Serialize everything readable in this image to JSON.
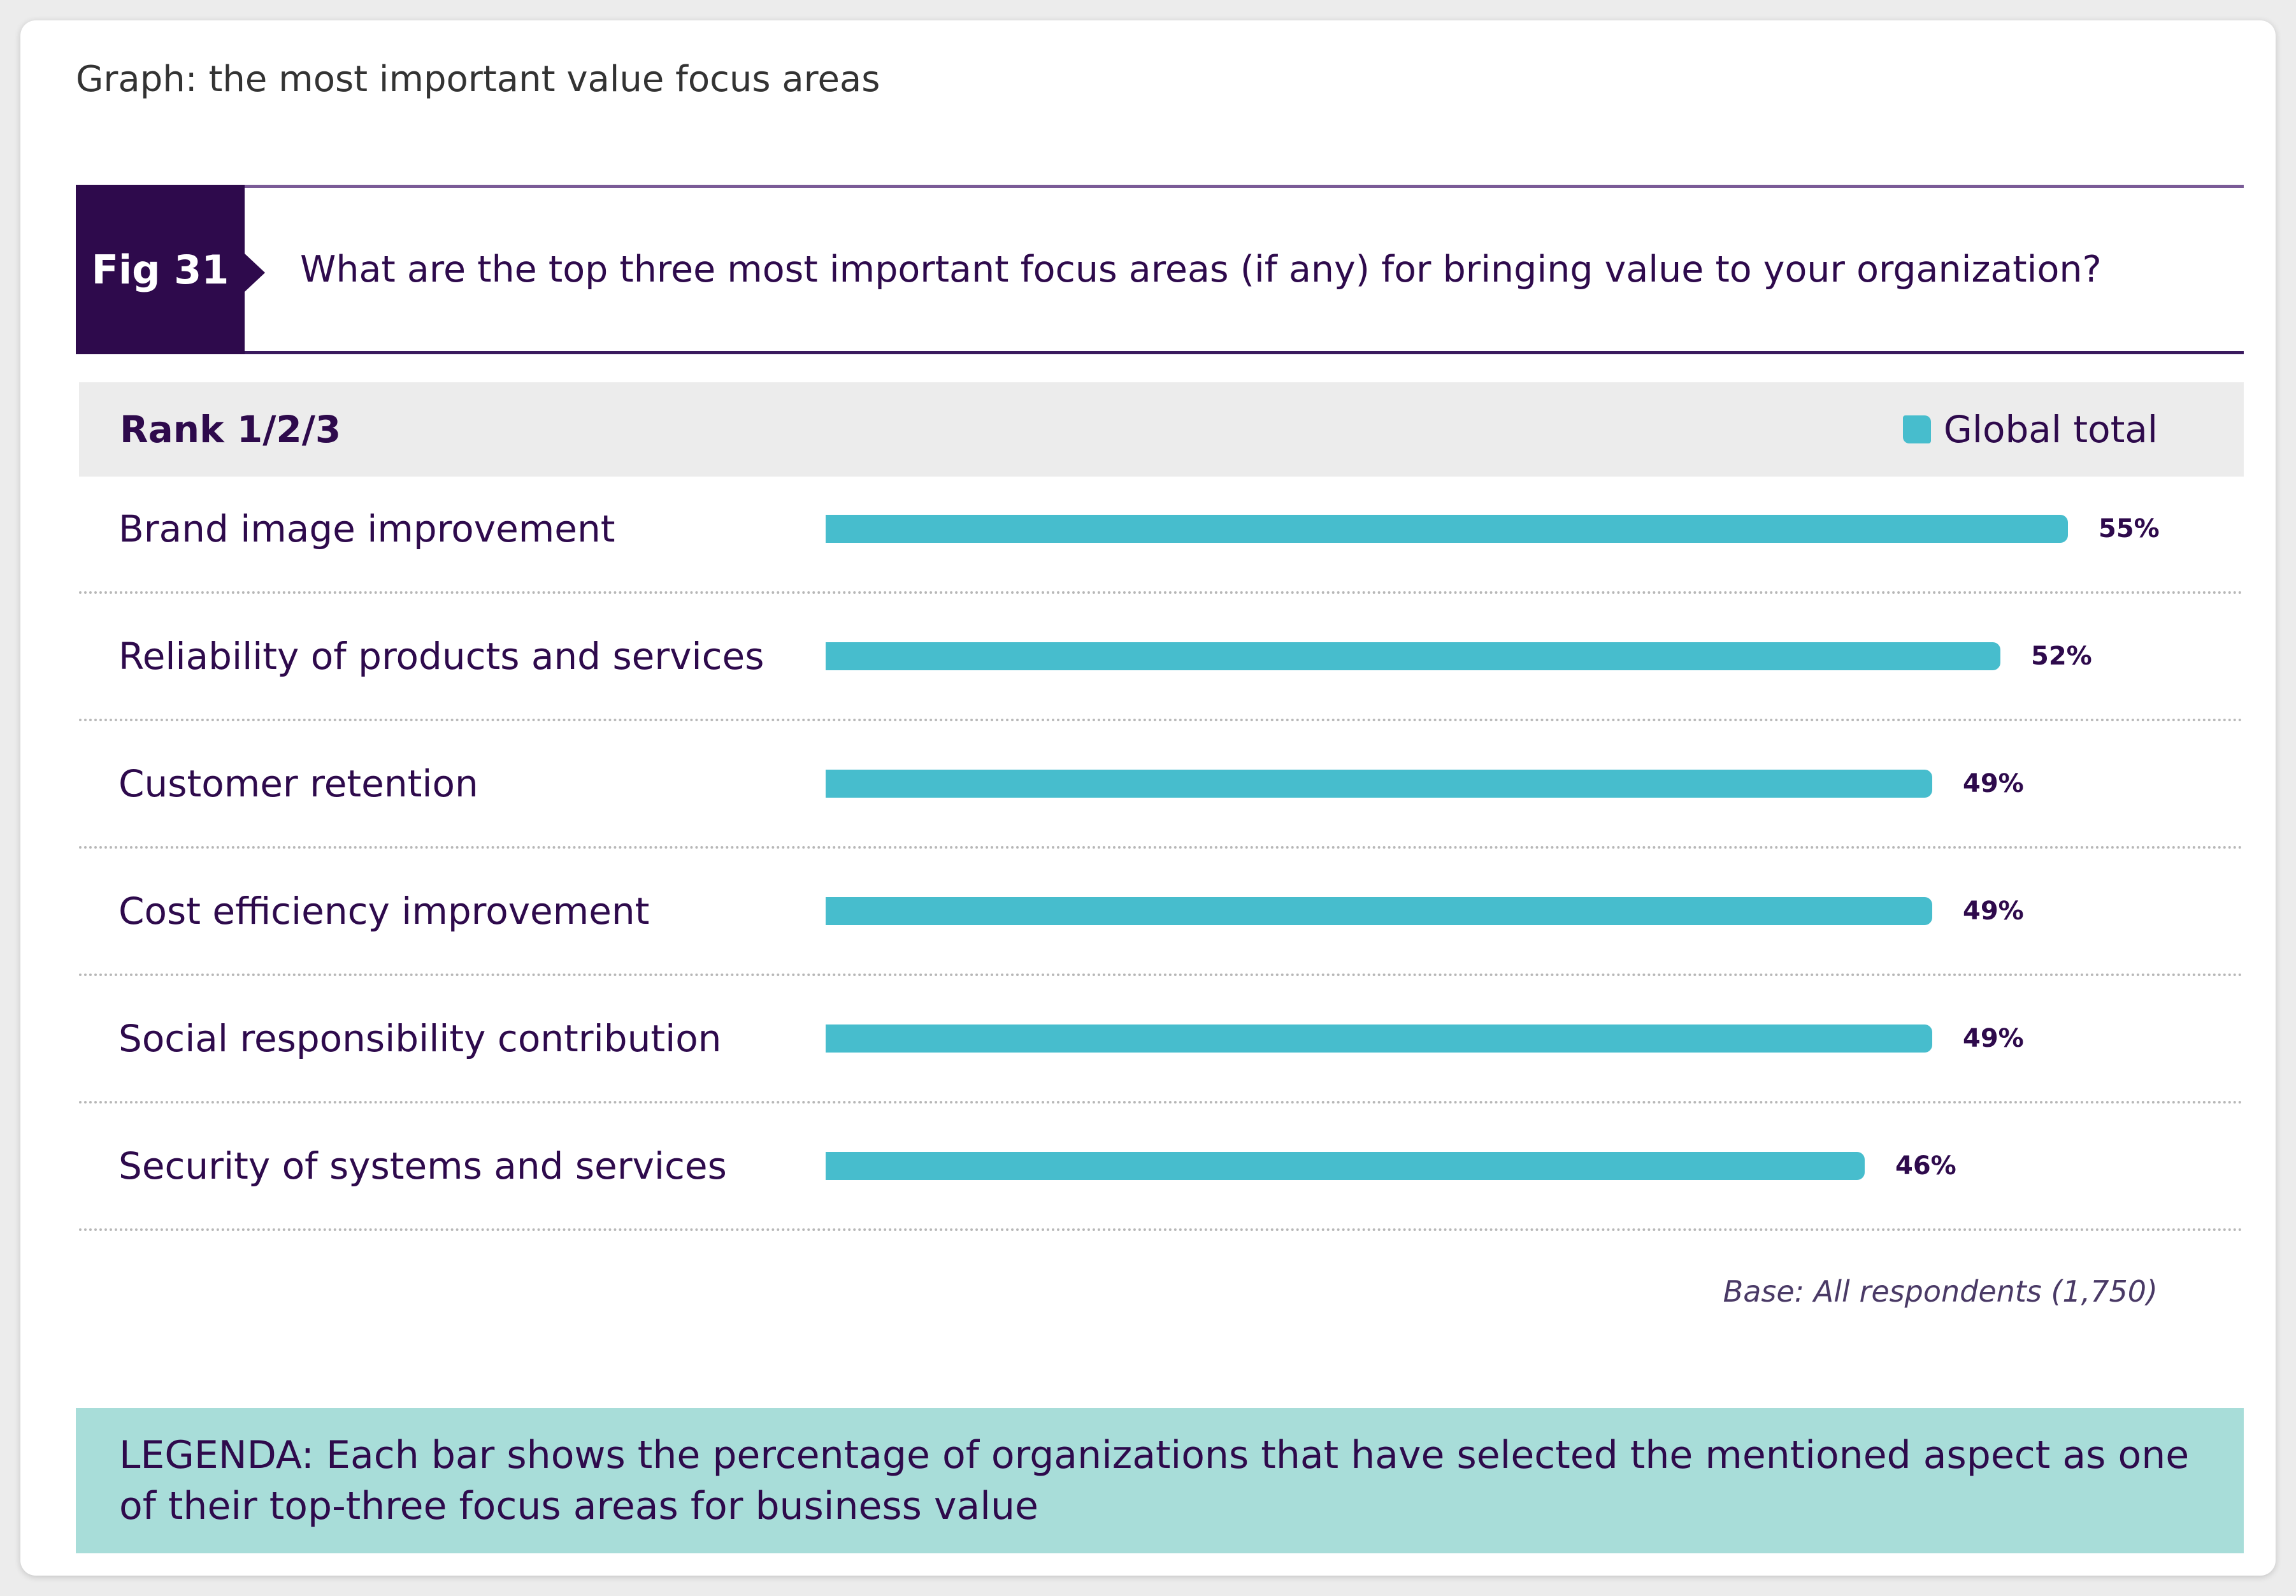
{
  "graph_title": "Graph: the most important value focus areas",
  "figure": {
    "label": "Fig 31",
    "question": "What are the top three most important focus areas (if any) for bringing value to your organization?"
  },
  "rank_label": "Rank 1/2/3",
  "base_note": "Base: All respondents (1,750)",
  "legenda": "LEGENDA: Each bar shows the percentage  of organizations that have selected the mentioned aspect as one of their top-three focus areas for business value",
  "colors": {
    "bar": "#47bdcd",
    "header": "#2e0a4c",
    "legenda_bg": "#a8ddd9"
  },
  "chart_data": {
    "type": "bar",
    "orientation": "horizontal",
    "categories": [
      "Brand image improvement",
      "Reliability of products and services",
      "Customer retention",
      "Cost efficiency improvement",
      "Social responsibility contribution",
      "Security of systems and services"
    ],
    "series": [
      {
        "name": "Global total",
        "values": [
          55,
          52,
          49,
          49,
          49,
          46
        ]
      }
    ],
    "value_labels": [
      "55%",
      "52%",
      "49%",
      "49%",
      "49%",
      "46%"
    ],
    "unit": "%",
    "xlim": [
      0,
      55
    ],
    "grid": false,
    "legend_position": "top-right"
  }
}
